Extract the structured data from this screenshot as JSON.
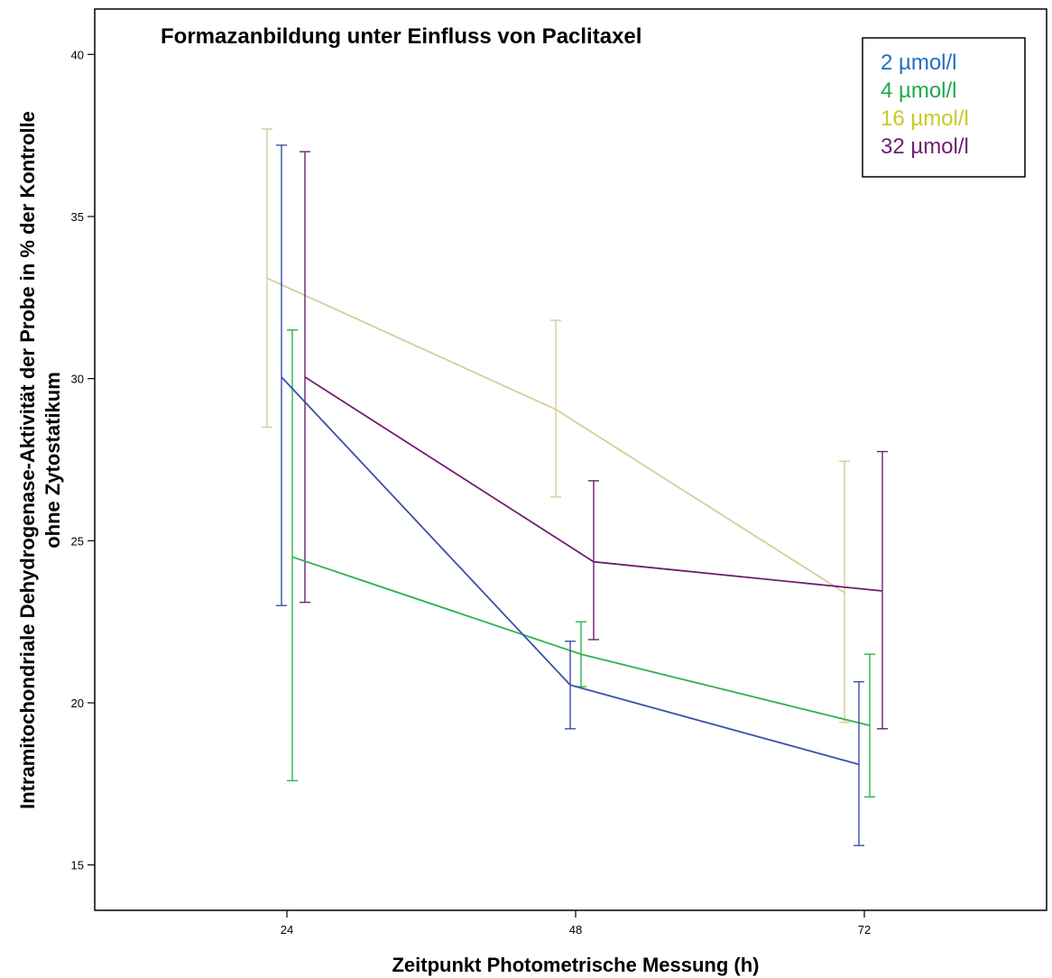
{
  "chart_data": {
    "type": "line",
    "title": "Formazanbildung unter Einfluss von Paclitaxel",
    "xlabel": "Zeitpunkt Photometrische Messung (h)",
    "ylabel_line1": "Intramitochondriale Dehydrogenase-Aktivität der Probe in % der Kontrolle",
    "ylabel_line2": "ohne Zytostatikum",
    "categories": [
      "24",
      "48",
      "72"
    ],
    "yticks": [
      "15",
      "20",
      "25",
      "30",
      "35",
      "40"
    ],
    "ylim": [
      13.6,
      41.4
    ],
    "legend_position": "top-right",
    "series": [
      {
        "name": "2 µmol/l",
        "color": "#3a50a8",
        "label_color": "#1f6fc0",
        "values": [
          30.05,
          20.55,
          18.1
        ],
        "err_low": [
          23.0,
          19.2,
          15.6
        ],
        "err_high": [
          37.2,
          21.9,
          20.65
        ]
      },
      {
        "name": "4 µmol/l",
        "color": "#2db34a",
        "label_color": "#1fa84a",
        "values": [
          24.5,
          21.5,
          19.3
        ],
        "err_low": [
          17.6,
          20.5,
          17.1
        ],
        "err_high": [
          31.5,
          22.5,
          21.5
        ]
      },
      {
        "name": "16 µmol/l",
        "color": "#d6cc9a",
        "label_color": "#c9c92a",
        "values": [
          33.1,
          29.05,
          23.4
        ],
        "err_low": [
          28.5,
          26.35,
          19.4
        ],
        "err_high": [
          37.7,
          31.8,
          27.45
        ]
      },
      {
        "name": "32 µmol/l",
        "color": "#6f1f70",
        "label_color": "#6f1f70",
        "values": [
          30.05,
          24.35,
          23.45
        ],
        "err_low": [
          23.1,
          21.95,
          19.2
        ],
        "err_high": [
          37.0,
          26.85,
          27.75
        ]
      }
    ]
  }
}
